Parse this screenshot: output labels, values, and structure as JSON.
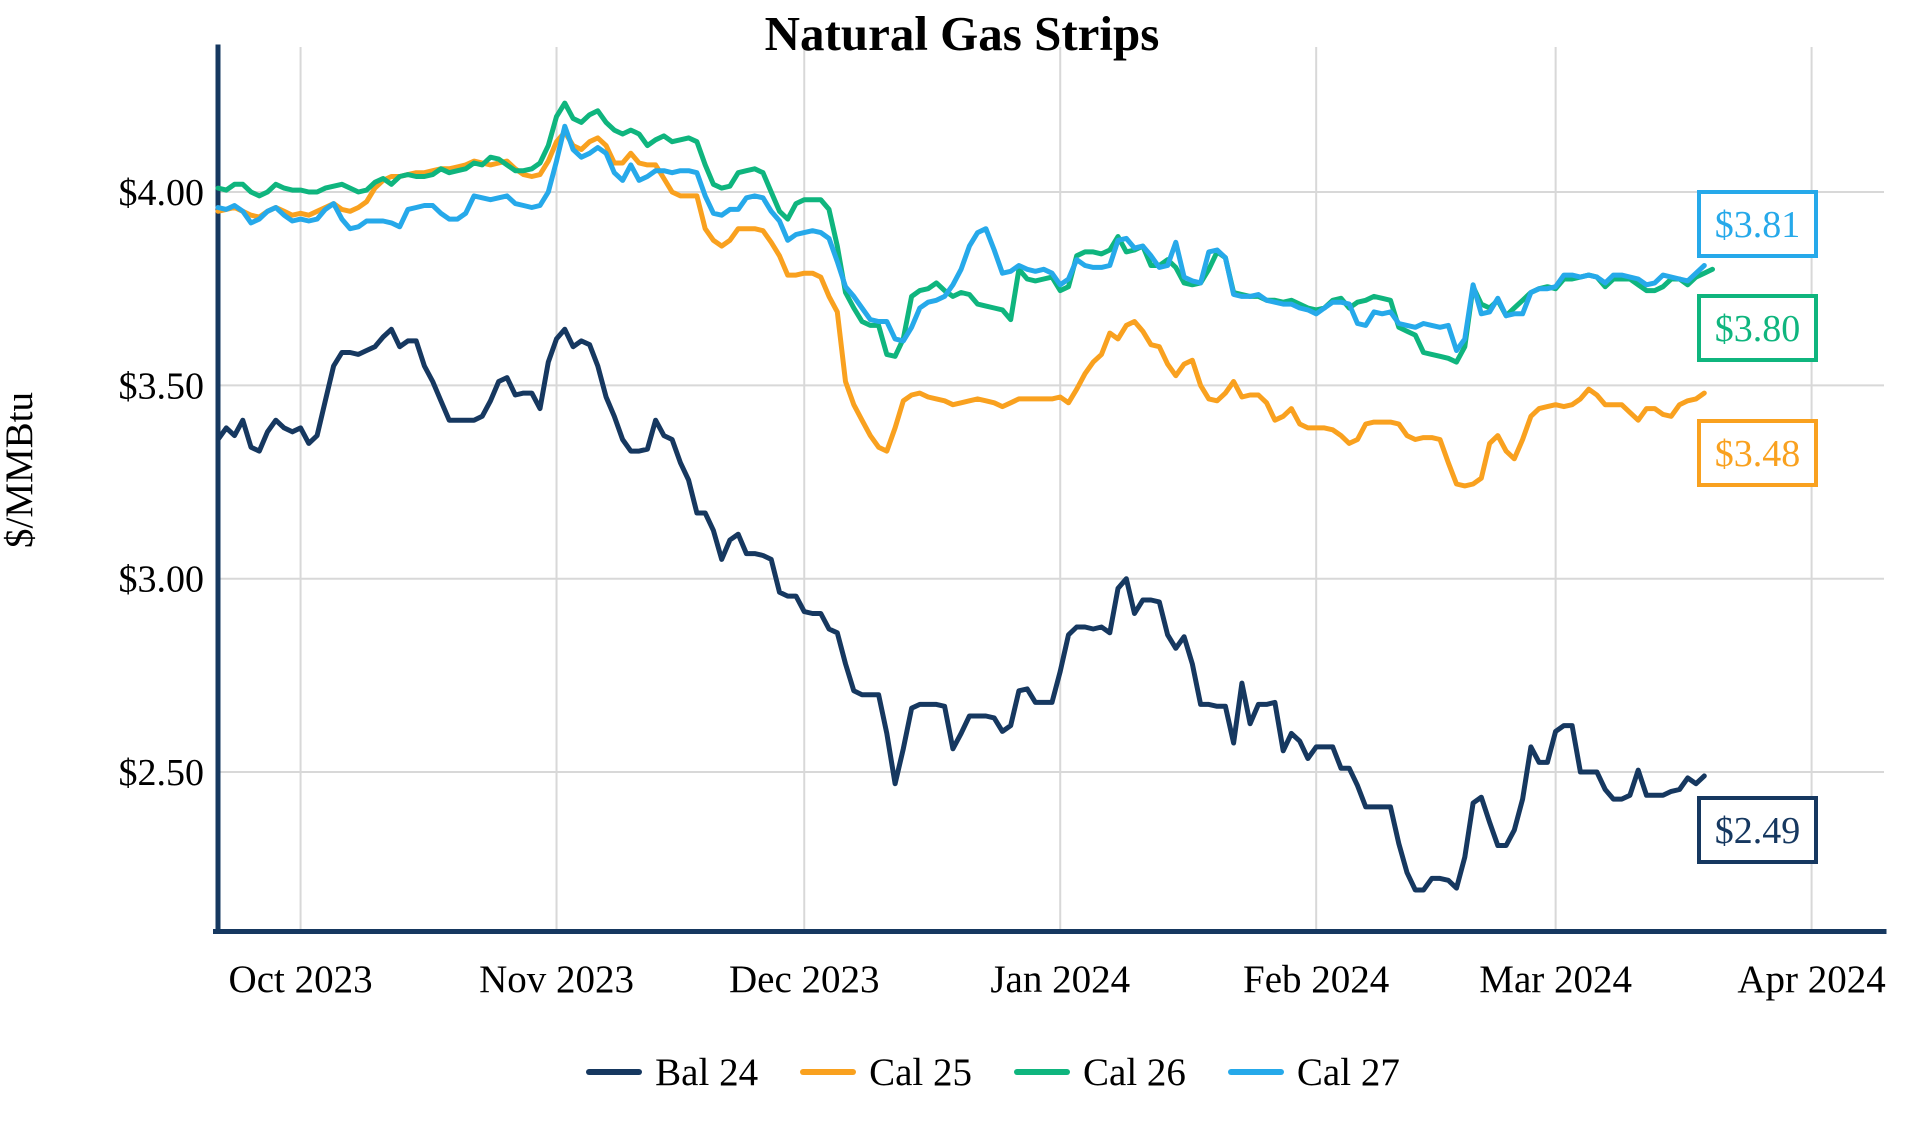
{
  "title": "Natural Gas Strips",
  "chart_data": {
    "type": "line",
    "title": "Natural Gas Strips",
    "xlabel": "",
    "ylabel": "$/MMBtu",
    "grid": true,
    "legend_position": "bottom",
    "x_unit": "trading days, day 0 = Sep 21 2023",
    "ylim": [
      2.09,
      4.38
    ],
    "x_ticks": [
      {
        "day": 10,
        "label": "Oct 2023"
      },
      {
        "day": 41,
        "label": "Nov 2023"
      },
      {
        "day": 71,
        "label": "Dec 2023"
      },
      {
        "day": 102,
        "label": "Jan 2024"
      },
      {
        "day": 133,
        "label": "Feb 2024"
      },
      {
        "day": 162,
        "label": "Mar 2024"
      },
      {
        "day": 193,
        "label": "Apr 2024"
      }
    ],
    "y_ticks": [
      {
        "value": 4.0,
        "label": "$4.00"
      },
      {
        "value": 3.5,
        "label": "$3.50"
      },
      {
        "value": 3.0,
        "label": "$3.00"
      },
      {
        "value": 2.5,
        "label": "$2.50"
      }
    ],
    "series": [
      {
        "name": "Bal 24",
        "color": "#163860",
        "end_label": "$2.49",
        "values": [
          3.36,
          3.39,
          3.37,
          3.41,
          3.34,
          3.33,
          3.38,
          3.41,
          3.39,
          3.38,
          3.39,
          3.35,
          3.37,
          3.46,
          3.55,
          3.585,
          3.585,
          3.58,
          3.59,
          3.6,
          3.625,
          3.645,
          3.6,
          3.615,
          3.615,
          3.55,
          3.51,
          3.46,
          3.41,
          3.41,
          3.41,
          3.41,
          3.42,
          3.46,
          3.51,
          3.52,
          3.475,
          3.48,
          3.48,
          3.44,
          3.56,
          3.62,
          3.645,
          3.6,
          3.615,
          3.605,
          3.55,
          3.47,
          3.42,
          3.36,
          3.33,
          3.33,
          3.335,
          3.41,
          3.37,
          3.36,
          3.3,
          3.255,
          3.17,
          3.17,
          3.125,
          3.05,
          3.1,
          3.115,
          3.065,
          3.065,
          3.06,
          3.05,
          2.965,
          2.955,
          2.955,
          2.915,
          2.91,
          2.91,
          2.87,
          2.86,
          2.78,
          2.71,
          2.7,
          2.7,
          2.7,
          2.6,
          2.47,
          2.56,
          2.665,
          2.675,
          2.675,
          2.675,
          2.67,
          2.56,
          2.6,
          2.645,
          2.645,
          2.645,
          2.64,
          2.605,
          2.62,
          2.71,
          2.715,
          2.68,
          2.68,
          2.68,
          2.76,
          2.855,
          2.875,
          2.875,
          2.87,
          2.875,
          2.86,
          2.975,
          3.0,
          2.91,
          2.945,
          2.945,
          2.94,
          2.855,
          2.82,
          2.85,
          2.78,
          2.675,
          2.675,
          2.67,
          2.67,
          2.575,
          2.73,
          2.625,
          2.675,
          2.675,
          2.68,
          2.555,
          2.6,
          2.58,
          2.535,
          2.565,
          2.565,
          2.565,
          2.51,
          2.51,
          2.465,
          2.41,
          2.41,
          2.41,
          2.41,
          2.315,
          2.24,
          2.195,
          2.195,
          2.225,
          2.225,
          2.22,
          2.2,
          2.28,
          2.42,
          2.435,
          2.37,
          2.31,
          2.31,
          2.35,
          2.43,
          2.565,
          2.525,
          2.525,
          2.605,
          2.62,
          2.62,
          2.5,
          2.5,
          2.5,
          2.455,
          2.43,
          2.43,
          2.44,
          2.505,
          2.44,
          2.44,
          2.44,
          2.45,
          2.455,
          2.485,
          2.47,
          2.49
        ]
      },
      {
        "name": "Cal 25",
        "color": "#F9A11F",
        "end_label": "$3.48",
        "values": [
          3.95,
          3.955,
          3.96,
          3.95,
          3.94,
          3.935,
          3.95,
          3.96,
          3.95,
          3.94,
          3.945,
          3.94,
          3.95,
          3.96,
          3.97,
          3.955,
          3.95,
          3.96,
          3.975,
          4.01,
          4.03,
          4.04,
          4.04,
          4.045,
          4.05,
          4.05,
          4.055,
          4.06,
          4.06,
          4.065,
          4.07,
          4.08,
          4.075,
          4.07,
          4.075,
          4.08,
          4.06,
          4.045,
          4.04,
          4.045,
          4.08,
          4.13,
          4.155,
          4.12,
          4.11,
          4.13,
          4.14,
          4.12,
          4.075,
          4.075,
          4.1,
          4.075,
          4.07,
          4.07,
          4.035,
          4.0,
          3.99,
          3.99,
          3.99,
          3.905,
          3.875,
          3.86,
          3.875,
          3.905,
          3.905,
          3.905,
          3.9,
          3.87,
          3.835,
          3.785,
          3.785,
          3.79,
          3.79,
          3.78,
          3.73,
          3.69,
          3.51,
          3.45,
          3.41,
          3.37,
          3.34,
          3.33,
          3.39,
          3.46,
          3.475,
          3.48,
          3.47,
          3.465,
          3.46,
          3.45,
          3.455,
          3.46,
          3.465,
          3.46,
          3.455,
          3.445,
          3.455,
          3.465,
          3.465,
          3.465,
          3.465,
          3.465,
          3.47,
          3.455,
          3.49,
          3.53,
          3.56,
          3.58,
          3.635,
          3.62,
          3.655,
          3.665,
          3.64,
          3.605,
          3.6,
          3.555,
          3.525,
          3.555,
          3.565,
          3.5,
          3.465,
          3.46,
          3.48,
          3.51,
          3.47,
          3.475,
          3.475,
          3.455,
          3.41,
          3.42,
          3.44,
          3.4,
          3.39,
          3.39,
          3.39,
          3.385,
          3.37,
          3.35,
          3.36,
          3.4,
          3.405,
          3.405,
          3.405,
          3.4,
          3.37,
          3.36,
          3.365,
          3.365,
          3.36,
          3.3,
          3.245,
          3.24,
          3.245,
          3.26,
          3.35,
          3.37,
          3.33,
          3.31,
          3.36,
          3.42,
          3.44,
          3.445,
          3.45,
          3.445,
          3.45,
          3.465,
          3.49,
          3.475,
          3.45,
          3.45,
          3.45,
          3.43,
          3.41,
          3.44,
          3.44,
          3.425,
          3.42,
          3.45,
          3.46,
          3.465,
          3.48
        ]
      },
      {
        "name": "Cal 26",
        "color": "#0FB57E",
        "end_label": "$3.80",
        "values": [
          4.01,
          4.005,
          4.02,
          4.02,
          4.0,
          3.99,
          4.0,
          4.02,
          4.01,
          4.005,
          4.005,
          4.0,
          4.0,
          4.01,
          4.015,
          4.02,
          4.01,
          4.0,
          4.005,
          4.025,
          4.035,
          4.02,
          4.04,
          4.045,
          4.04,
          4.04,
          4.045,
          4.06,
          4.05,
          4.055,
          4.06,
          4.075,
          4.07,
          4.09,
          4.085,
          4.07,
          4.055,
          4.055,
          4.06,
          4.075,
          4.12,
          4.195,
          4.23,
          4.19,
          4.18,
          4.2,
          4.21,
          4.18,
          4.16,
          4.15,
          4.16,
          4.15,
          4.12,
          4.135,
          4.145,
          4.13,
          4.135,
          4.14,
          4.13,
          4.07,
          4.02,
          4.01,
          4.015,
          4.05,
          4.055,
          4.06,
          4.05,
          4.0,
          3.95,
          3.93,
          3.97,
          3.98,
          3.98,
          3.98,
          3.955,
          3.86,
          3.74,
          3.7,
          3.665,
          3.655,
          3.655,
          3.58,
          3.575,
          3.62,
          3.73,
          3.745,
          3.75,
          3.765,
          3.745,
          3.73,
          3.74,
          3.735,
          3.71,
          3.705,
          3.7,
          3.695,
          3.67,
          3.8,
          3.775,
          3.77,
          3.775,
          3.78,
          3.745,
          3.755,
          3.835,
          3.845,
          3.845,
          3.84,
          3.85,
          3.885,
          3.845,
          3.85,
          3.86,
          3.81,
          3.81,
          3.825,
          3.805,
          3.765,
          3.76,
          3.765,
          3.8,
          3.845,
          3.83,
          3.74,
          3.735,
          3.73,
          3.73,
          3.72,
          3.72,
          3.715,
          3.72,
          3.71,
          3.7,
          3.695,
          3.7,
          3.72,
          3.725,
          3.7,
          3.715,
          3.72,
          3.73,
          3.725,
          3.72,
          3.65,
          3.64,
          3.63,
          3.585,
          3.58,
          3.575,
          3.57,
          3.56,
          3.6,
          3.755,
          3.71,
          3.7,
          3.72,
          3.68,
          3.7,
          3.72,
          3.74,
          3.75,
          3.755,
          3.75,
          3.775,
          3.775,
          3.78,
          3.785,
          3.78,
          3.755,
          3.775,
          3.775,
          3.775,
          3.76,
          3.745,
          3.745,
          3.755,
          3.775,
          3.775,
          3.76,
          3.78,
          3.79,
          3.8
        ]
      },
      {
        "name": "Cal 27",
        "color": "#26A9EA",
        "end_label": "$3.81",
        "values": [
          3.96,
          3.955,
          3.965,
          3.95,
          3.92,
          3.93,
          3.95,
          3.96,
          3.94,
          3.925,
          3.93,
          3.925,
          3.93,
          3.955,
          3.97,
          3.93,
          3.905,
          3.91,
          3.925,
          3.925,
          3.925,
          3.92,
          3.91,
          3.955,
          3.96,
          3.965,
          3.965,
          3.945,
          3.93,
          3.93,
          3.945,
          3.99,
          3.985,
          3.98,
          3.985,
          3.99,
          3.97,
          3.965,
          3.96,
          3.965,
          4.0,
          4.08,
          4.17,
          4.11,
          4.09,
          4.1,
          4.115,
          4.1,
          4.05,
          4.03,
          4.07,
          4.03,
          4.04,
          4.055,
          4.055,
          4.05,
          4.055,
          4.055,
          4.05,
          3.99,
          3.945,
          3.94,
          3.955,
          3.955,
          3.985,
          3.99,
          3.985,
          3.95,
          3.925,
          3.875,
          3.89,
          3.895,
          3.9,
          3.895,
          3.88,
          3.82,
          3.755,
          3.73,
          3.7,
          3.67,
          3.665,
          3.665,
          3.62,
          3.615,
          3.65,
          3.7,
          3.715,
          3.72,
          3.73,
          3.76,
          3.8,
          3.86,
          3.895,
          3.905,
          3.85,
          3.79,
          3.795,
          3.81,
          3.8,
          3.795,
          3.8,
          3.79,
          3.76,
          3.775,
          3.825,
          3.81,
          3.805,
          3.805,
          3.81,
          3.875,
          3.88,
          3.855,
          3.86,
          3.835,
          3.805,
          3.81,
          3.87,
          3.78,
          3.77,
          3.765,
          3.845,
          3.85,
          3.83,
          3.735,
          3.73,
          3.73,
          3.735,
          3.72,
          3.715,
          3.71,
          3.71,
          3.7,
          3.695,
          3.685,
          3.7,
          3.715,
          3.715,
          3.71,
          3.66,
          3.655,
          3.69,
          3.685,
          3.69,
          3.66,
          3.655,
          3.65,
          3.66,
          3.655,
          3.65,
          3.655,
          3.59,
          3.62,
          3.76,
          3.685,
          3.69,
          3.725,
          3.68,
          3.685,
          3.685,
          3.74,
          3.75,
          3.75,
          3.755,
          3.785,
          3.785,
          3.78,
          3.785,
          3.78,
          3.765,
          3.785,
          3.785,
          3.78,
          3.775,
          3.76,
          3.765,
          3.785,
          3.78,
          3.775,
          3.77,
          3.79,
          3.81
        ]
      }
    ],
    "end_labels": [
      {
        "series": "Cal 27",
        "text": "$3.81",
        "color": "#26A9EA"
      },
      {
        "series": "Cal 26",
        "text": "$3.80",
        "color": "#0FB57E"
      },
      {
        "series": "Cal 25",
        "text": "$3.48",
        "color": "#F9A11F"
      },
      {
        "series": "Bal 24",
        "text": "$2.49",
        "color": "#163860"
      }
    ],
    "legend": [
      {
        "label": "Bal 24",
        "color": "#163860"
      },
      {
        "label": "Cal 25",
        "color": "#F9A11F"
      },
      {
        "label": "Cal 26",
        "color": "#0FB57E"
      },
      {
        "label": "Cal 27",
        "color": "#26A9EA"
      }
    ],
    "colors": {
      "background": "#ffffff",
      "gridline": "#d8d8d8",
      "axis_spine": "#163860",
      "text": "#000000"
    }
  }
}
